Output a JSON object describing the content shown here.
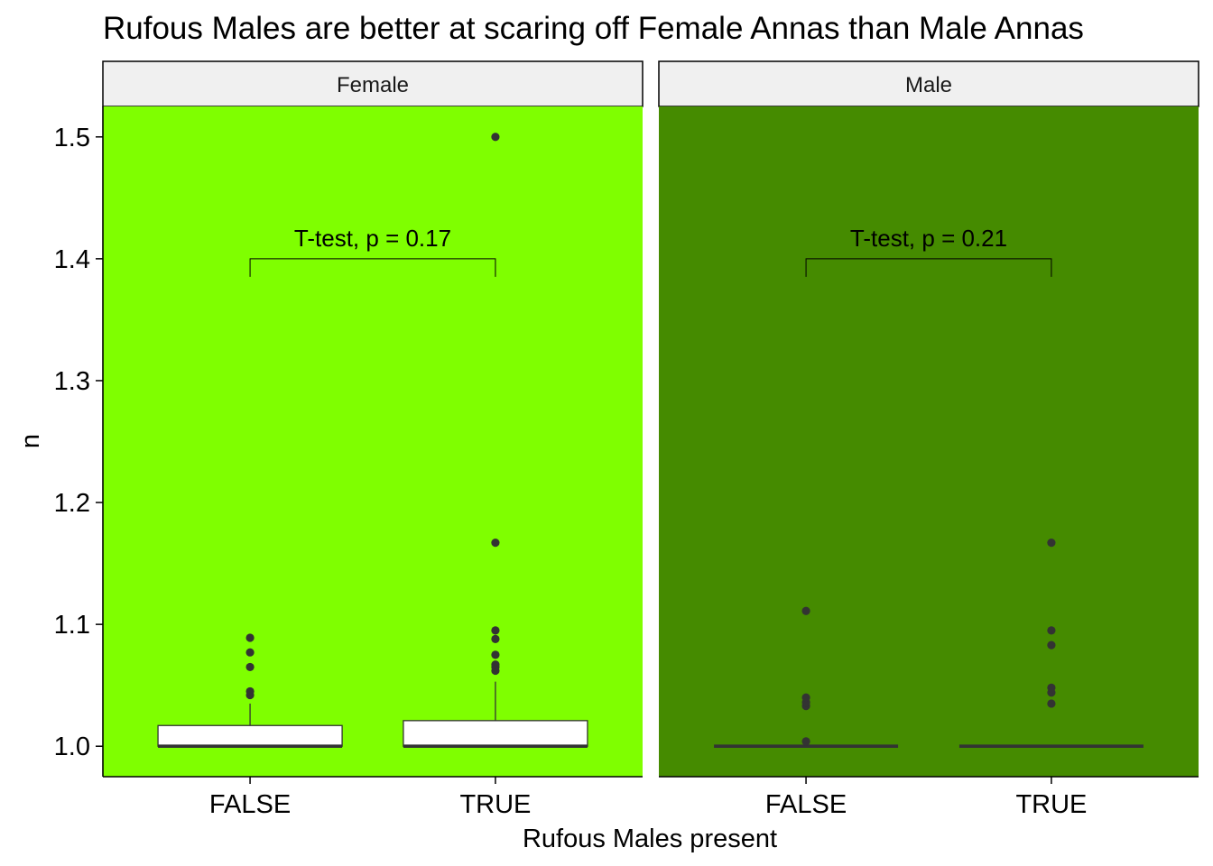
{
  "chart_data": {
    "type": "boxplot",
    "title": "Rufous Males are better at scaring off Female Annas than Male Annas",
    "xlabel": "Rufous Males present",
    "ylabel": "n",
    "ylim": [
      0.975,
      1.525
    ],
    "yticks": [
      1.0,
      1.1,
      1.2,
      1.3,
      1.4,
      1.5
    ],
    "ytick_labels": [
      "1.0",
      "1.1",
      "1.2",
      "1.3",
      "1.4",
      "1.5"
    ],
    "categories": [
      "FALSE",
      "TRUE"
    ],
    "grid": false,
    "legend": "none",
    "panels": [
      {
        "label": "Female",
        "background": "#7FFF00",
        "groups": [
          {
            "category": "FALSE",
            "min": 1.0,
            "q1": 1.0,
            "median": 1.0,
            "q3": 1.017,
            "max": 1.035,
            "outliers": [
              1.042,
              1.045,
              1.065,
              1.077,
              1.089
            ]
          },
          {
            "category": "TRUE",
            "min": 1.0,
            "q1": 1.0,
            "median": 1.0,
            "q3": 1.021,
            "max": 1.053,
            "outliers": [
              1.062,
              1.065,
              1.067,
              1.075,
              1.088,
              1.095,
              1.167,
              1.5
            ]
          }
        ],
        "annotation": {
          "text": "T-test, p = 0.17",
          "y": 1.4
        }
      },
      {
        "label": "Male",
        "background": "#458B00",
        "groups": [
          {
            "category": "FALSE",
            "min": 1.0,
            "q1": 1.0,
            "median": 1.0,
            "q3": 1.0,
            "max": 1.0,
            "outliers": [
              1.004,
              1.033,
              1.036,
              1.04,
              1.111
            ]
          },
          {
            "category": "TRUE",
            "min": 1.0,
            "q1": 1.0,
            "median": 1.0,
            "q3": 1.0,
            "max": 1.0,
            "outliers": [
              1.035,
              1.044,
              1.048,
              1.083,
              1.095,
              1.167
            ]
          }
        ],
        "annotation": {
          "text": "T-test, p = 0.21",
          "y": 1.4
        }
      }
    ]
  }
}
